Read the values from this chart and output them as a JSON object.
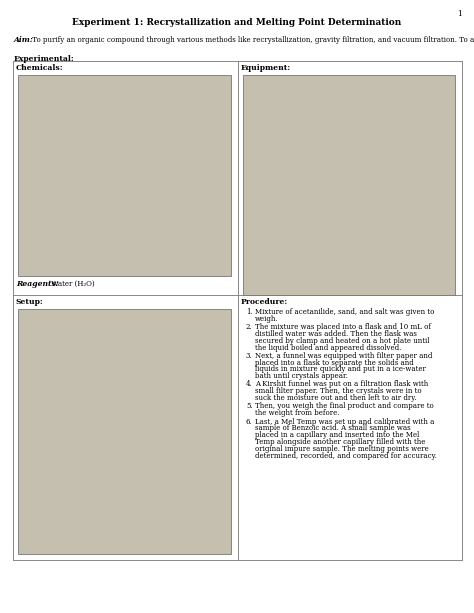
{
  "page_number": "1",
  "title": "Experiment 1: Recrystallization and Melting Point Determination",
  "aim_label": "Aim:",
  "aim_text": " To purify an organic compound through various methods like recrystallization, gravity filtration, and vacuum filtration. To also compare melting points between our the experimental product and the standard.",
  "experimental_label": "Experimental:",
  "chemicals_label": "Chemicals:",
  "equipment_label": "Equipment:",
  "reagents_below_label": "Reagents:",
  "reagents_below_text": " Water (H₂O)",
  "setup_label": "Setup:",
  "procedure_label": "Procedure:",
  "procedure_steps": [
    "Mixture of acetanilide, sand, and salt was given to\nweigh.",
    "The mixture was placed into a flask and 10 mL of\ndistilled water was added. Then the flask was\nsecured by clamp and heated on a hot plate until\nthe liquid boiled and appeared dissolved.",
    "Next, a funnel was equipped with filter paper and\nplaced into a flask to separate the solids and\nliquids in mixture quickly and put in a ice-water\nbath until crystals appear.",
    "A Kirshit funnel was put on a filtration flask with\nsmall filter paper. Then, the crystals were in to\nsuck the moisture out and then left to air dry.",
    "Then, you weigh the final product and compare to\nthe weight from before.",
    "Last, a Mel Temp was set up and calibrated with a\nsample of Benzoic acid. A small sample was\nplaced in a capillary and inserted into the Mel\nTemp alongside another capillary filled with the\noriginal impure sample. The melting points were\ndetermined, recorded, and compared for accuracy."
  ],
  "bg_color": "#ffffff",
  "text_color": "#000000",
  "font_size_title": 6.5,
  "font_size_body": 5.0,
  "font_size_label": 5.5,
  "grid_color": "#888888",
  "photo_color": "#c5bfb0"
}
